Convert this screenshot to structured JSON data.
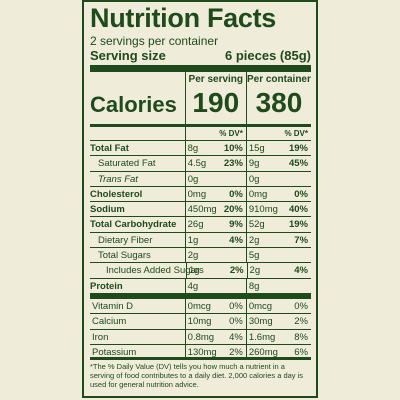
{
  "title": "Nutrition Facts",
  "servings_per_container": "2 servings per container",
  "serving_size_label": "Serving size",
  "serving_size_value": "6 pieces (85g)",
  "calories_label": "Calories",
  "col1_title": "Per serving",
  "col2_title": "Per container",
  "calories_per_serving": "190",
  "calories_per_container": "380",
  "dv_header": "% DV*",
  "nutrients": [
    {
      "name": "Total Fat",
      "amt1": "8g",
      "dv1": "10%",
      "amt2": "15g",
      "dv2": "19%"
    },
    {
      "name": "Saturated Fat",
      "amt1": "4.5g",
      "dv1": "23%",
      "amt2": "9g",
      "dv2": "45%"
    },
    {
      "name": "Trans Fat",
      "amt1": "0g",
      "dv1": "",
      "amt2": "0g",
      "dv2": ""
    },
    {
      "name": "Cholesterol",
      "amt1": "0mg",
      "dv1": "0%",
      "amt2": "0mg",
      "dv2": "0%"
    },
    {
      "name": "Sodium",
      "amt1": "450mg",
      "dv1": "20%",
      "amt2": "910mg",
      "dv2": "40%"
    },
    {
      "name": "Total Carbohydrate",
      "amt1": "26g",
      "dv1": "9%",
      "amt2": "52g",
      "dv2": "19%"
    },
    {
      "name": "Dietary Fiber",
      "amt1": "1g",
      "dv1": "4%",
      "amt2": "2g",
      "dv2": "7%"
    },
    {
      "name": "Total Sugars",
      "amt1": "2g",
      "dv1": "",
      "amt2": "5g",
      "dv2": ""
    },
    {
      "name": "Includes Added Sugars",
      "amt1": "1g",
      "dv1": "2%",
      "amt2": "2g",
      "dv2": "4%"
    },
    {
      "name": "Protein",
      "amt1": "4g",
      "dv1": "",
      "amt2": "8g",
      "dv2": ""
    }
  ],
  "vitamins": [
    {
      "name": "Vitamin D",
      "amt1": "0mcg",
      "dv1": "0%",
      "amt2": "0mcg",
      "dv2": "0%"
    },
    {
      "name": "Calcium",
      "amt1": "10mg",
      "dv1": "0%",
      "amt2": "30mg",
      "dv2": "2%"
    },
    {
      "name": "Iron",
      "amt1": "0.8mg",
      "dv1": "4%",
      "amt2": "1.6mg",
      "dv2": "8%"
    },
    {
      "name": "Potassium",
      "amt1": "130mg",
      "dv1": "2%",
      "amt2": "260mg",
      "dv2": "6%"
    }
  ],
  "footnote": "*The % Daily Value (DV) tells you how much a nutrient in a serving of food contributes to a daily diet. 2,000 calories a day is used for general nutrition advice.",
  "colors": {
    "ink": "#1f4a1c",
    "background": "#efecda"
  }
}
